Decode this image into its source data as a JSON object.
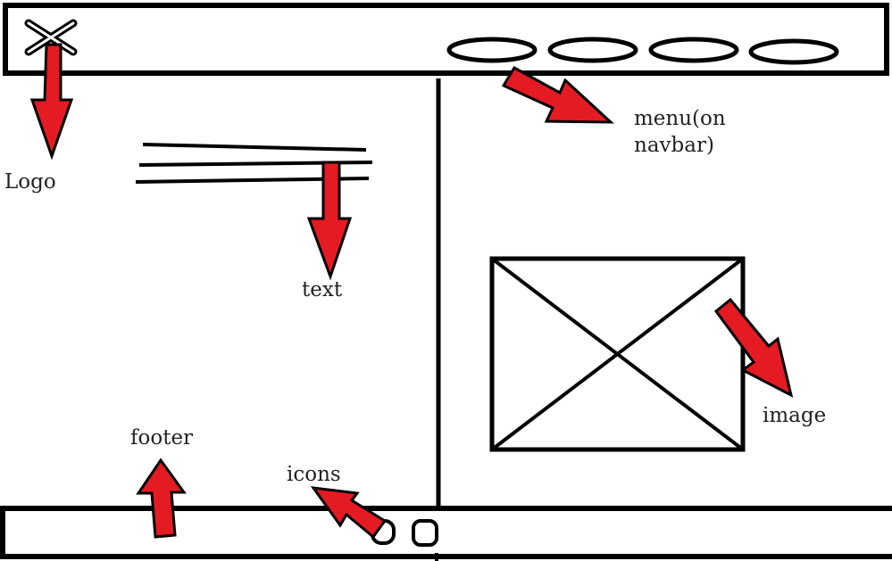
{
  "colors": {
    "stroke": "#000000",
    "arrow_fill": "#e41b23",
    "label_text": "#222222",
    "background": "#ffffff"
  },
  "navbar": {
    "logo_icon": "x-logo-icon",
    "menu_item_count": 4
  },
  "main": {
    "text_line_count": 3,
    "image_placeholder_icon": "crossed-box-image-icon"
  },
  "footer": {
    "icon_count": 2
  },
  "labels": {
    "logo": "Logo",
    "menu_line1": "menu(on",
    "menu_line2": "navbar)",
    "text": "text",
    "image": "image",
    "footer": "footer",
    "icons": "icons"
  }
}
